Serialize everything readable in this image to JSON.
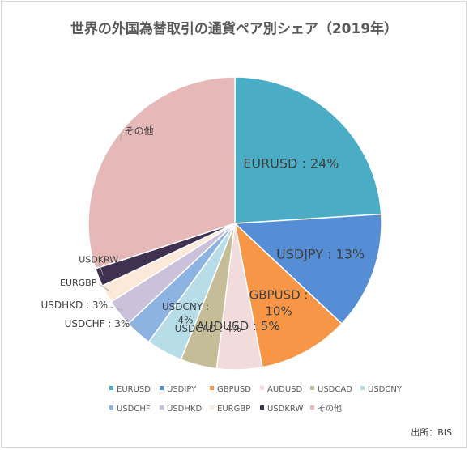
{
  "chart_data": {
    "type": "pie",
    "title": "世界の外国為替取引の通貨ペア別シェア（2019年）",
    "source": "出所：BIS",
    "legend_position": "bottom",
    "slices": [
      {
        "name": "EURUSD",
        "value": 24,
        "label": [
          "EURUSD : 24%"
        ],
        "color": "#4bacc6"
      },
      {
        "name": "USDJPY",
        "value": 13,
        "label": [
          "USDJPY : 13%"
        ],
        "color": "#558ed5"
      },
      {
        "name": "GBPUSD",
        "value": 10,
        "label": [
          "GBPUSD :",
          "10%"
        ],
        "color": "#f79646"
      },
      {
        "name": "AUDUSD",
        "value": 5,
        "label": [
          "AUDUSD : 5%"
        ],
        "color": "#f2dcdb"
      },
      {
        "name": "USDCAD",
        "value": 4,
        "label": [
          "USDCAD : 4%"
        ],
        "color": "#c4bd97"
      },
      {
        "name": "USDCNY",
        "value": 4,
        "label": [
          "USDCNY :",
          "4%"
        ],
        "color": "#b7dee8"
      },
      {
        "name": "USDCHF",
        "value": 3,
        "label": [
          "USDCHF : 3%"
        ],
        "color": "#8db3e2"
      },
      {
        "name": "USDHKD",
        "value": 3,
        "label": [
          "USDHKD : 3%"
        ],
        "color": "#ccc1da"
      },
      {
        "name": "EURGBP",
        "value": 2,
        "label": [
          "EURGBP"
        ],
        "color": "#fde9d9"
      },
      {
        "name": "USDKRW",
        "value": 2,
        "label": [
          "USDKRW"
        ],
        "color": "#403151"
      },
      {
        "name": "その他",
        "value": 30,
        "label": [
          "その他"
        ],
        "color": "#e6b9b8"
      }
    ],
    "legend": [
      "EURUSD",
      "USDJPY",
      "GBPUSD",
      "AUDUSD",
      "USDCAD",
      "USDCNY",
      "USDCHF",
      "USDHKD",
      "EURGBP",
      "USDKRW",
      "その他"
    ]
  }
}
